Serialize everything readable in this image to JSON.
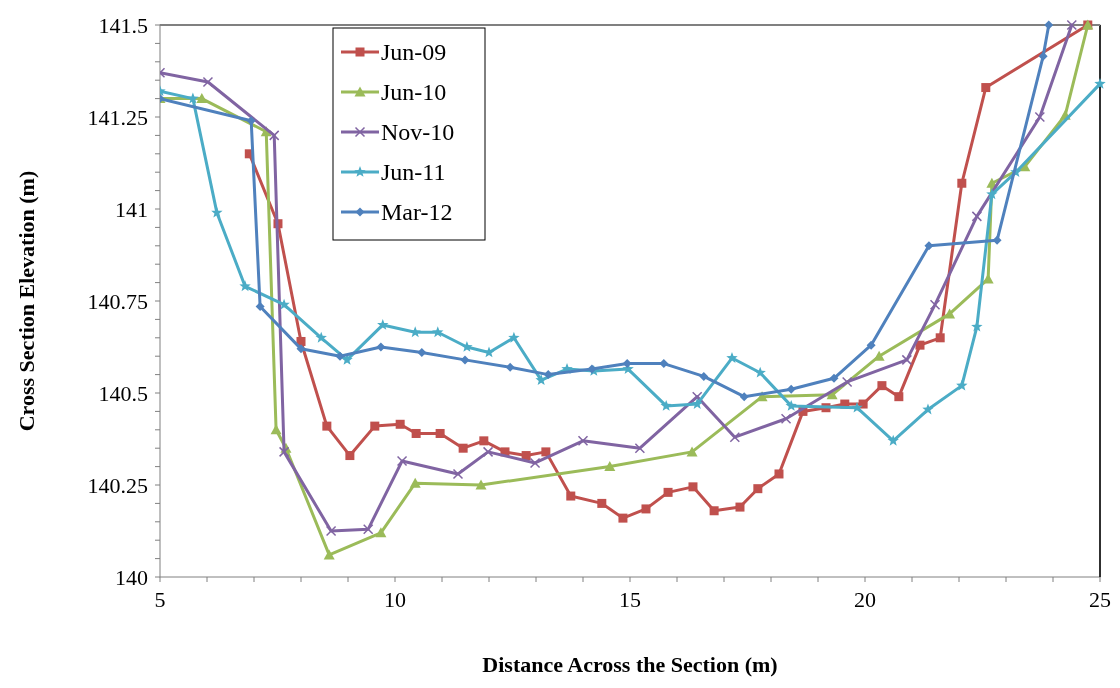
{
  "chart_data": {
    "type": "line",
    "xlabel": "Distance Across the Section (m)",
    "ylabel": "Cross Section Elevation (m)",
    "xlim": [
      5,
      25
    ],
    "ylim": [
      140,
      141.5
    ],
    "xticks": [
      5,
      {
        "value": 6,
        "label": null
      },
      {
        "value": 7,
        "label": null
      },
      {
        "value": 8,
        "label": null
      },
      {
        "value": 9,
        "label": null
      },
      10,
      {
        "value": 11,
        "label": null
      },
      {
        "value": 12,
        "label": null
      },
      {
        "value": 13,
        "label": null
      },
      {
        "value": 14,
        "label": null
      },
      15,
      {
        "value": 16,
        "label": null
      },
      {
        "value": 17,
        "label": null
      },
      {
        "value": 18,
        "label": null
      },
      {
        "value": 19,
        "label": null
      },
      20,
      {
        "value": 21,
        "label": null
      },
      {
        "value": 22,
        "label": null
      },
      {
        "value": 23,
        "label": null
      },
      {
        "value": 24,
        "label": null
      },
      25
    ],
    "yticks": [
      140,
      {
        "value": 140.05,
        "label": null
      },
      {
        "value": 140.1,
        "label": null
      },
      {
        "value": 140.15,
        "label": null
      },
      {
        "value": 140.2,
        "label": null
      },
      140.25,
      {
        "value": 140.3,
        "label": null
      },
      {
        "value": 140.35,
        "label": null
      },
      {
        "value": 140.4,
        "label": null
      },
      {
        "value": 140.45,
        "label": null
      },
      140.5,
      {
        "value": 140.55,
        "label": null
      },
      {
        "value": 140.6,
        "label": null
      },
      {
        "value": 140.65,
        "label": null
      },
      {
        "value": 140.7,
        "label": null
      },
      140.75,
      {
        "value": 140.8,
        "label": null
      },
      {
        "value": 140.85,
        "label": null
      },
      {
        "value": 140.9,
        "label": null
      },
      {
        "value": 140.95,
        "label": null
      },
      141,
      {
        "value": 141.05,
        "label": null
      },
      {
        "value": 141.1,
        "label": null
      },
      {
        "value": 141.15,
        "label": null
      },
      {
        "value": 141.2,
        "label": null
      },
      141.25,
      {
        "value": 141.3,
        "label": null
      },
      {
        "value": 141.35,
        "label": null
      },
      {
        "value": 141.4,
        "label": null
      },
      {
        "value": 141.45,
        "label": null
      },
      141.5
    ],
    "grid": false,
    "legend": "top left",
    "line_style": "solid",
    "series": [
      {
        "name": "Jun-09",
        "color": "#c0504d",
        "marker": "square",
        "x": [
          6.9,
          7.51,
          8.0,
          8.55,
          9.04,
          9.57,
          10.11,
          10.45,
          10.96,
          11.45,
          11.89,
          12.34,
          12.79,
          13.21,
          13.74,
          14.4,
          14.85,
          15.34,
          15.81,
          16.34,
          16.79,
          17.34,
          17.72,
          18.17,
          18.68,
          19.17,
          19.57,
          19.96,
          20.36,
          20.72,
          21.17,
          21.6,
          22.06,
          22.57,
          24.74
        ],
        "values": [
          141.15,
          140.96,
          140.64,
          140.41,
          140.33,
          140.41,
          140.415,
          140.39,
          140.39,
          140.35,
          140.37,
          140.34,
          140.33,
          140.34,
          140.22,
          140.2,
          140.16,
          140.185,
          140.23,
          140.245,
          140.18,
          140.19,
          140.24,
          140.28,
          140.45,
          140.46,
          140.47,
          140.47,
          140.52,
          140.49,
          140.63,
          140.65,
          141.07,
          141.33,
          141.5
        ]
      },
      {
        "name": "Jun-10",
        "color": "#9bbb59",
        "marker": "triangle",
        "x": [
          5,
          5.89,
          7.26,
          7.47,
          7.68,
          8.6,
          9.7,
          10.43,
          11.83,
          14.57,
          16.32,
          17.81,
          19.3,
          20.3,
          21.8,
          22.62,
          22.7,
          23.4,
          24.26,
          24.74
        ],
        "values": [
          141.3,
          141.3,
          141.21,
          140.4,
          140.35,
          140.06,
          140.12,
          140.255,
          140.25,
          140.3,
          140.34,
          140.49,
          140.495,
          140.6,
          140.715,
          140.81,
          141.07,
          141.115,
          141.255,
          141.5
        ]
      },
      {
        "name": "Nov-10",
        "color": "#8064a2",
        "marker": "cross",
        "x": [
          5,
          6.02,
          7.43,
          7.64,
          8.64,
          9.43,
          10.15,
          11.34,
          11.98,
          12.98,
          14.0,
          15.21,
          16.43,
          17.23,
          18.32,
          19.62,
          20.89,
          21.49,
          22.38,
          23.72,
          24.4
        ],
        "values": [
          141.37,
          141.345,
          141.2,
          140.34,
          140.125,
          140.13,
          140.315,
          140.28,
          140.34,
          140.31,
          140.37,
          140.35,
          140.49,
          140.38,
          140.43,
          140.53,
          140.59,
          140.74,
          140.98,
          141.25,
          141.5
        ]
      },
      {
        "name": "Jun-11",
        "color": "#4bacc6",
        "marker": "star",
        "x": [
          5,
          5.7,
          6.21,
          6.81,
          7.64,
          8.43,
          8.98,
          9.74,
          10.43,
          10.91,
          11.53,
          12.0,
          12.53,
          13.11,
          13.66,
          14.23,
          14.96,
          15.77,
          16.43,
          17.17,
          17.77,
          18.43,
          19.83,
          20.6,
          21.34,
          22.06,
          22.38,
          22.7,
          23.21,
          25
        ],
        "values": [
          141.32,
          141.3,
          140.99,
          140.79,
          140.74,
          140.65,
          140.59,
          140.685,
          140.665,
          140.665,
          140.625,
          140.61,
          140.65,
          140.535,
          140.565,
          140.56,
          140.565,
          140.465,
          140.47,
          140.595,
          140.555,
          140.465,
          140.46,
          140.37,
          140.455,
          140.52,
          140.68,
          141.04,
          141.1,
          141.34
        ]
      },
      {
        "name": "Mar-12",
        "color": "#4f81bd",
        "marker": "diamond",
        "x": [
          5,
          6.94,
          7.13,
          8.0,
          8.83,
          9.7,
          10.57,
          11.49,
          12.45,
          13.26,
          14.19,
          14.94,
          15.72,
          16.57,
          17.43,
          18.43,
          19.34,
          20.13,
          21.36,
          22.81,
          23.79,
          23.91
        ],
        "values": [
          141.3,
          141.24,
          140.735,
          140.62,
          140.6,
          140.625,
          140.61,
          140.59,
          140.57,
          140.55,
          140.565,
          140.58,
          140.58,
          140.545,
          140.49,
          140.51,
          140.54,
          140.63,
          140.9,
          140.915,
          141.415,
          141.5
        ]
      }
    ]
  }
}
